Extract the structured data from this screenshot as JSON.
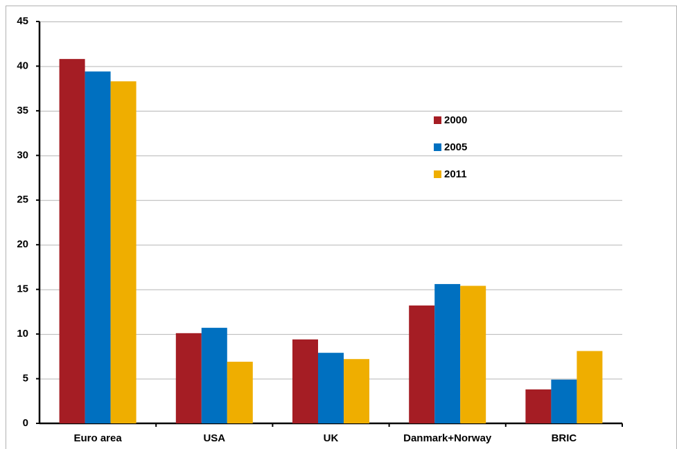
{
  "chart_data": {
    "type": "bar",
    "categories": [
      "Euro area",
      "USA",
      "UK",
      "Danmark+Norway",
      "BRIC"
    ],
    "series": [
      {
        "name": "2000",
        "color": "#a51d24",
        "values": [
          40.8,
          10.1,
          9.4,
          13.2,
          3.8
        ]
      },
      {
        "name": "2005",
        "color": "#0070c0",
        "values": [
          39.4,
          10.7,
          7.9,
          15.6,
          4.9
        ]
      },
      {
        "name": "2011",
        "color": "#efae00",
        "values": [
          38.3,
          6.9,
          7.2,
          15.4,
          8.1
        ]
      }
    ],
    "ylim": [
      0,
      45
    ],
    "yticks": [
      0,
      5,
      10,
      15,
      20,
      25,
      30,
      35,
      40,
      45
    ],
    "grid": true,
    "legend": "upper right"
  }
}
